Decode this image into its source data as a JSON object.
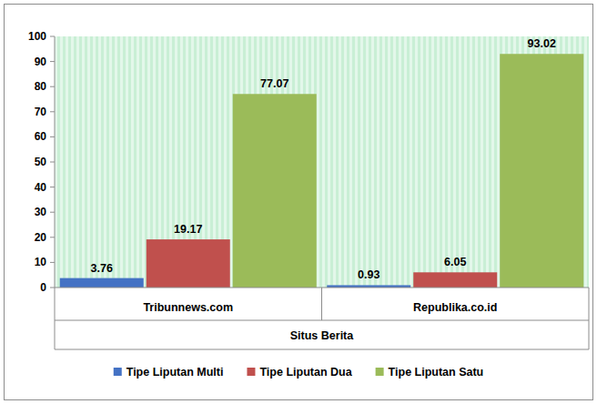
{
  "chart_data": {
    "type": "bar",
    "x_label": "Situs Berita",
    "categories": [
      "Tribunnews.com",
      "Republika.co.id"
    ],
    "series": [
      {
        "name": "Tipe Liputan Multi",
        "color": "#4472c4",
        "values": [
          3.76,
          0.93
        ]
      },
      {
        "name": "Tipe Liputan Dua",
        "color": "#c0504d",
        "values": [
          19.17,
          6.05
        ]
      },
      {
        "name": "Tipe Liputan Satu",
        "color": "#9bbb59",
        "values": [
          77.07,
          93.02
        ]
      }
    ],
    "ylim": [
      0,
      100
    ],
    "yticks": [
      0,
      10,
      20,
      30,
      40,
      50,
      60,
      70,
      80,
      90,
      100
    ],
    "grid": false,
    "legend": "bottom",
    "data_labels": true
  }
}
